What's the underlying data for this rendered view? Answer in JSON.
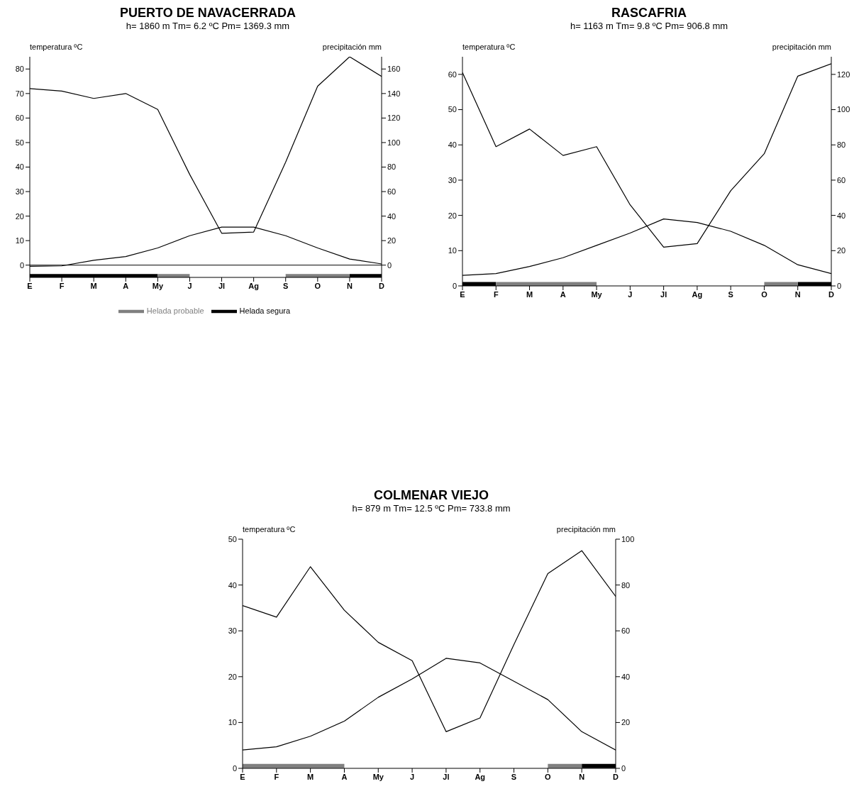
{
  "chart_data": [
    {
      "type": "line",
      "title": "PUERTO DE NAVACERRADA",
      "subtitle": "h= 1860 m  Tm= 6.2 ºC  Pm= 1369.3 mm",
      "ylabel": "temperatura ºC",
      "y2label": "precipitación mm",
      "categories": [
        "E",
        "F",
        "M",
        "A",
        "My",
        "J",
        "Jl",
        "Ag",
        "S",
        "O",
        "N",
        "D"
      ],
      "series": [
        {
          "color": "#000000",
          "values": [
            -0.5,
            -0.3,
            2,
            3.5,
            7,
            12,
            15.5,
            15.5,
            12,
            7,
            2.5,
            0.5
          ]
        },
        {
          "color": "#000000",
          "axis": "y2",
          "values": [
            144,
            142,
            136,
            140,
            127,
            74,
            26,
            27,
            84,
            146,
            170,
            154
          ]
        },
        {
          "name": "Helada segura",
          "color": "#000000",
          "line_style": "solid",
          "values": [
            -4.5,
            -4.5,
            -4.5,
            -4.5,
            -4.5,
            null,
            null,
            null,
            null,
            null,
            -4.5,
            -4.5
          ]
        },
        {
          "name": "Helada probable",
          "color": "#808080",
          "values": [
            null,
            null,
            null,
            null,
            -4.5,
            -4.5,
            null,
            null,
            -4.5,
            -4.5,
            -4.5,
            null
          ]
        }
      ],
      "ylim": [
        -5,
        85
      ],
      "yticks": [
        0,
        10,
        20,
        30,
        40,
        50,
        60,
        70,
        80
      ],
      "y2lim": [
        -10,
        170
      ],
      "y2ticks": [
        0,
        20,
        40,
        60,
        80,
        100,
        120,
        140,
        160
      ],
      "ref_lines": [
        {
          "axis": "y",
          "value": 0
        }
      ],
      "grid": false,
      "legend": "bottom",
      "marker": "none",
      "line_style": "solid"
    },
    {
      "type": "line",
      "title": "RASCAFRIA",
      "subtitle": "h= 1163 m  Tm= 9.8 ºC  Pm= 906.8 mm",
      "ylabel": "temperatura ºC",
      "y2label": "precipitación mm",
      "categories": [
        "E",
        "F",
        "M",
        "A",
        "My",
        "J",
        "Jl",
        "Ag",
        "S",
        "O",
        "N",
        "D"
      ],
      "series": [
        {
          "color": "#000000",
          "values": [
            3,
            3.5,
            5.5,
            8,
            11.5,
            15,
            19,
            18,
            15.5,
            11.5,
            6,
            3.5
          ]
        },
        {
          "color": "#000000",
          "axis": "y2",
          "values": [
            121,
            79,
            89,
            74,
            79,
            46,
            22,
            24,
            54,
            75,
            119,
            126
          ]
        },
        {
          "color": "#000000",
          "line_style": "solid",
          "values": [
            0.5,
            0.5,
            null,
            null,
            null,
            null,
            null,
            null,
            null,
            null,
            0.5,
            0.5
          ]
        },
        {
          "color": "#808080",
          "values": [
            null,
            0.5,
            0.5,
            0.5,
            0.5,
            null,
            null,
            null,
            null,
            0.5,
            0.5,
            null
          ]
        }
      ],
      "ylim": [
        0,
        65
      ],
      "yticks": [
        0,
        10,
        20,
        30,
        40,
        50,
        60
      ],
      "y2lim": [
        0,
        130
      ],
      "y2ticks": [
        0,
        20,
        40,
        60,
        80,
        100,
        120
      ],
      "grid": false,
      "legend": false,
      "marker": "none",
      "line_style": "solid"
    },
    {
      "type": "line",
      "title": "COLMENAR VIEJO",
      "subtitle": "h= 879 m  Tm= 12.5 ºC  Pm= 733.8 mm",
      "ylabel": "temperatura ºC",
      "y2label": "precipitación mm",
      "categories": [
        "E",
        "F",
        "M",
        "A",
        "My",
        "J",
        "Jl",
        "Ag",
        "S",
        "O",
        "N",
        "D"
      ],
      "series": [
        {
          "color": "#000000",
          "values": [
            4,
            4.7,
            7,
            10.3,
            15.5,
            19.5,
            24,
            23,
            19,
            15,
            8,
            4
          ]
        },
        {
          "color": "#000000",
          "axis": "y2",
          "values": [
            71,
            66,
            88,
            69,
            55,
            47,
            16,
            22,
            54,
            85,
            95,
            75
          ]
        },
        {
          "color": "#000000",
          "line_style": "solid",
          "values": [
            null,
            null,
            null,
            null,
            null,
            null,
            null,
            null,
            null,
            null,
            0.5,
            0.5
          ]
        },
        {
          "color": "#808080",
          "values": [
            0.5,
            0.5,
            0.5,
            0.5,
            null,
            null,
            null,
            null,
            null,
            0.5,
            0.5,
            null
          ]
        }
      ],
      "ylim": [
        0,
        50
      ],
      "yticks": [
        0,
        10,
        20,
        30,
        40,
        50
      ],
      "y2lim": [
        0,
        100
      ],
      "y2ticks": [
        0,
        20,
        40,
        60,
        80,
        100
      ],
      "grid": false,
      "legend": false,
      "marker": "none",
      "line_style": "solid"
    }
  ]
}
